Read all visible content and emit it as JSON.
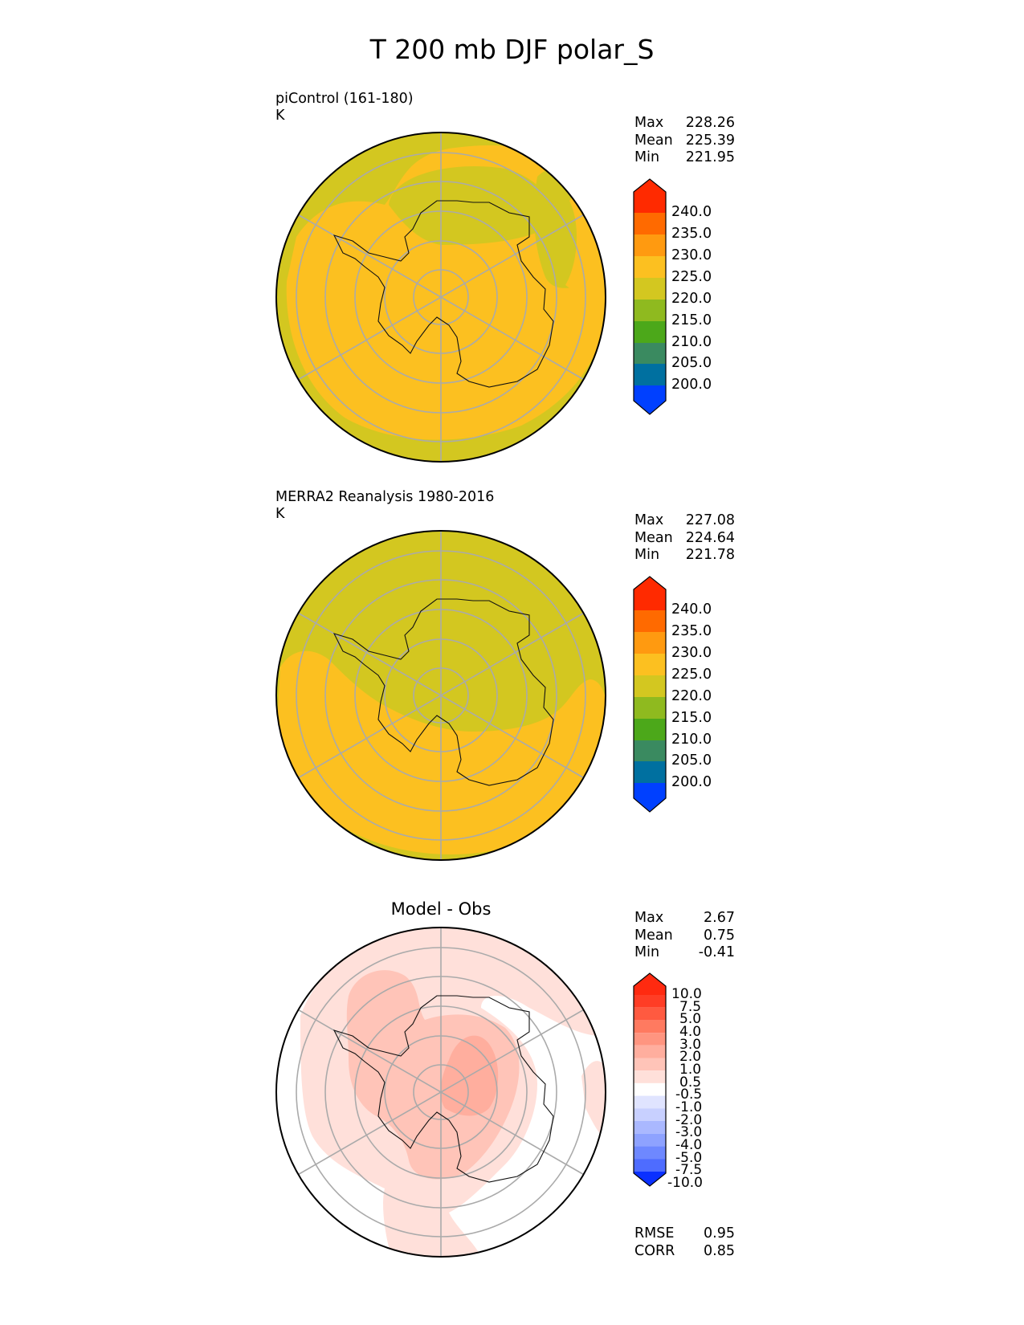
{
  "title": "T 200 mb DJF polar_S",
  "panels": [
    {
      "title_line1": "piControl (161-180)",
      "title_line2": "K",
      "stats": {
        "max_label": "Max",
        "max": "228.26",
        "mean_label": "Mean",
        "mean": "225.39",
        "min_label": "Min",
        "min": "221.95"
      }
    },
    {
      "title_line1": "MERRA2 Reanalysis 1980-2016",
      "title_line2": "K",
      "stats": {
        "max_label": "Max",
        "max": "227.08",
        "mean_label": "Mean",
        "mean": "224.64",
        "min_label": "Min",
        "min": "221.78"
      }
    },
    {
      "title_center": "Model - Obs",
      "stats": {
        "max_label": "Max",
        "max": "2.67",
        "mean_label": "Mean",
        "mean": "0.75",
        "min_label": "Min",
        "min": "-0.41"
      },
      "metrics": {
        "rmse_label": "RMSE",
        "rmse": "0.95",
        "corr_label": "CORR",
        "corr": "0.85"
      }
    }
  ],
  "colorbar_abs": {
    "ticks": [
      "240.0",
      "235.0",
      "230.0",
      "225.0",
      "220.0",
      "215.0",
      "210.0",
      "205.0",
      "200.0"
    ],
    "colors": [
      "#ff2a00",
      "#ff6a00",
      "#ff9a10",
      "#fcc020",
      "#d3c720",
      "#8fba1f",
      "#4ca81a",
      "#3a8a60",
      "#0070a0",
      "#0040ff"
    ]
  },
  "colorbar_diff": {
    "ticks": [
      "10.0",
      "7.5",
      "5.0",
      "4.0",
      "3.0",
      "2.0",
      "1.0",
      "0.5",
      "-0.5",
      "-1.0",
      "-2.0",
      "-3.0",
      "-4.0",
      "-5.0",
      "-7.5",
      "-10.0"
    ],
    "colors": [
      "#ff2a10",
      "#ff3d25",
      "#ff5a40",
      "#ff7a60",
      "#ff9580",
      "#ffae9e",
      "#ffc4b8",
      "#ffe0da",
      "#ffffff",
      "#e0e4ff",
      "#c8d0ff",
      "#aab8ff",
      "#8ea2ff",
      "#6e88ff",
      "#4e6cff",
      "#2e50ff",
      "#0a30ff"
    ]
  },
  "map_colors": {
    "band_220_225": "#d3c720",
    "band_225_230": "#fcc020",
    "diff_0_5_1": "#ffe0da",
    "diff_1_2": "#ffc4b8",
    "diff_2_3": "#ffae9e",
    "diff_white": "#ffffff"
  }
}
